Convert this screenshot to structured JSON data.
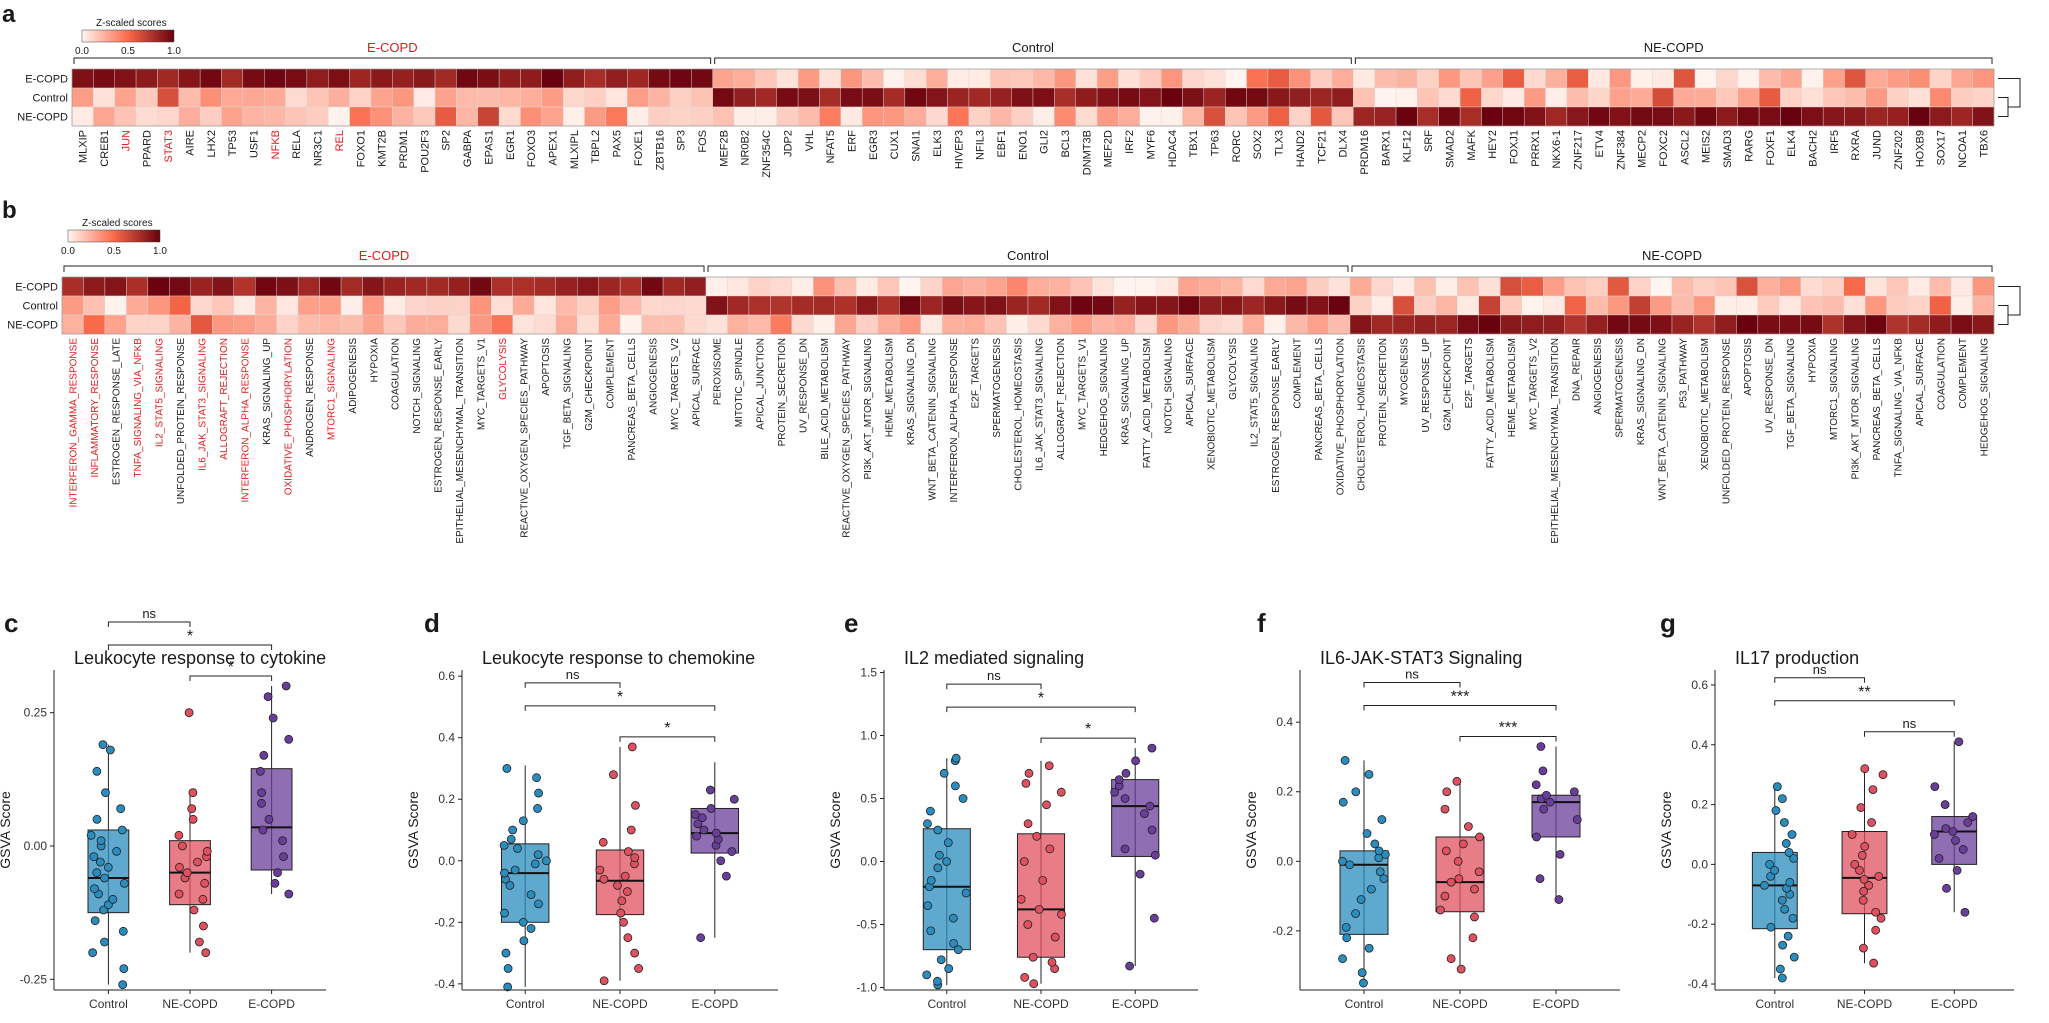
{
  "colors": {
    "low": "#fff5f0",
    "mid": "#fb6a4a",
    "high": "#67000d",
    "control": "#2b8cbe",
    "ne_copd": "#e0505f",
    "e_copd": "#6a3d9a",
    "label_highlight": "#e41a1c",
    "label_default": "#1a1a1a"
  },
  "panel_a": {
    "letter": "a",
    "legend_title": "Z-scaled scores",
    "legend_ticks": [
      "0.0",
      "0.5",
      "1.0"
    ],
    "group_labels": [
      "E-COPD",
      "Control",
      "NE-COPD"
    ],
    "row_labels": [
      "E-COPD",
      "Control",
      "NE-COPD"
    ],
    "columns": [
      "MLXIP",
      "CREB1",
      "JUN",
      "PPARD",
      "STAT3",
      "AIRE",
      "LHX2",
      "TP53",
      "USF1",
      "NFKB",
      "RELA",
      "NR3C1",
      "REL",
      "FOXO1",
      "KMT2B",
      "PRDM1",
      "POU2F3",
      "SP2",
      "GABPA",
      "EPAS1",
      "EGR1",
      "FOXO3",
      "APEX1",
      "MLXIPL",
      "TBPL2",
      "PAX5",
      "FOXE1",
      "ZBTB16",
      "SP3",
      "FOS",
      "MEF2B",
      "NR0B2",
      "ZNF354C",
      "JDP2",
      "VHL",
      "NFAT5",
      "ERF",
      "EGR3",
      "CUX1",
      "SNAI1",
      "ELK3",
      "HIVEP3",
      "NFIL3",
      "EBF1",
      "ENO1",
      "GLI2",
      "BCL3",
      "DNMT3B",
      "MEF2D",
      "IRF2",
      "MYF6",
      "HDAC4",
      "TBX1",
      "TP63",
      "RORC",
      "SOX2",
      "TLX3",
      "HAND2",
      "TCF21",
      "DLX4",
      "PRDM16",
      "BARX1",
      "KLF12",
      "SRF",
      "SMAD2",
      "MAFK",
      "HEY2",
      "FOXJ1",
      "PRRX1",
      "NKX6-1",
      "ZNF217",
      "ETV4",
      "ZNF384",
      "MECP2",
      "FOXC2",
      "ASCL2",
      "MEIS2",
      "SMAD3",
      "RARG",
      "FOXF1",
      "ELK4",
      "BACH2",
      "IRF5",
      "RXRA",
      "JUND",
      "ZNF202",
      "HOXB9",
      "SOX17",
      "NCOA1",
      "TBX6"
    ],
    "highlighted": [
      "JUN",
      "STAT3",
      "NFKB",
      "REL"
    ],
    "group_sizes": [
      30,
      30,
      30
    ]
  },
  "panel_b": {
    "letter": "b",
    "legend_title": "Z-scaled scores",
    "legend_ticks": [
      "0.0",
      "0.5",
      "1.0"
    ],
    "group_labels": [
      "E-COPD",
      "Control",
      "NE-COPD"
    ],
    "row_labels": [
      "E-COPD",
      "Control",
      "NE-COPD"
    ],
    "columns": [
      "INTERFERON_GAMMA_RESPONSE",
      "INFLAMMATORY_RESPONSE",
      "ESTROGEN_RESPONSE_LATE",
      "TNFA_SIGNALING_VIA_NFKB",
      "IL2_STAT5_SIGNALING",
      "UNFOLDED_PROTEIN_RESPONSE",
      "IL6_JAK_STAT3_SIGNALING",
      "ALLOGRAFT_REJECTION",
      "INTERFERON_ALPHA_RESPONSE",
      "KRAS_SIGNALING_UP",
      "OXIDATIVE_PHOSPHORYLATION",
      "ANDROGEN_RESPONSE",
      "MTORC1_SIGNALING",
      "ADIPOGENESIS",
      "HYPOXIA",
      "COAGULATION",
      "NOTCH_SIGNALING",
      "ESTROGEN_RESPONSE_EARLY",
      "EPITHELIAL_MESENCHYMAL_TRANSITION",
      "MYC_TARGETS_V1",
      "GLYCOLYSIS",
      "REACTIVE_OXYGEN_SPECIES_PATHWAY",
      "APOPTOSIS",
      "TGF_BETA_SIGNALING",
      "G2M_CHECKPOINT",
      "COMPLEMENT",
      "PANCREAS_BETA_CELLS",
      "ANGIOGENESIS",
      "MYC_TARGETS_V2",
      "APICAL_SURFACE",
      "PEROXISOME",
      "MITOTIC_SPINDLE",
      "APICAL_JUNCTION",
      "PROTEIN_SECRETION",
      "UV_RESPONSE_DN",
      "BILE_ACID_METABOLISM",
      "REACTIVE_OXYGEN_SPECIES_PATHWAY",
      "PI3K_AKT_MTOR_SIGNALING",
      "HEME_METABOLISM",
      "KRAS_SIGNALING_DN",
      "WNT_BETA_CATENIN_SIGNALING",
      "INTERFERON_ALPHA_RESPONSE",
      "E2F_TARGETS",
      "SPERMATOGENESIS",
      "CHOLESTEROL_HOMEOSTASIS",
      "IL6_JAK_STAT3_SIGNALING",
      "ALLOGRAFT_REJECTION",
      "MYC_TARGETS_V1",
      "HEDGEHOG_SIGNALING",
      "KRAS_SIGNALING_UP",
      "FATTY_ACID_METABOLISM",
      "NOTCH_SIGNALING",
      "APICAL_SURFACE",
      "XENOBIOTIC_METABOLISM",
      "GLYCOLYSIS",
      "IL2_STAT5_SIGNALING",
      "ESTROGEN_RESPONSE_EARLY",
      "COMPLEMENT",
      "PANCREAS_BETA_CELLS",
      "OXIDATIVE_PHOSPHORYLATION",
      "CHOLESTEROL_HOMEOSTASIS",
      "PROTEIN_SECRETION",
      "MYOGENESIS",
      "UV_RESPONSE_UP",
      "G2M_CHECKPOINT",
      "E2F_TARGETS",
      "FATTY_ACID_METABOLISM",
      "HEME_METABOLISM",
      "MYC_TARGETS_V2",
      "EPITHELIAL_MESENCHYMAL_TRANSITION",
      "DNA_REPAIR",
      "ANGIOGENESIS",
      "SPERMATOGENESIS",
      "KRAS_SIGNALING_DN",
      "WNT_BETA_CATENIN_SIGNALING",
      "P53_PATHWAY",
      "XENOBIOTIC_METABOLISM",
      "UNFOLDED_PROTEIN_RESPONSE",
      "APOPTOSIS",
      "UV_RESPONSE_DN",
      "TGF_BETA_SIGNALING",
      "HYPOXIA",
      "MTORC1_SIGNALING",
      "PI3K_AKT_MTOR_SIGNALING",
      "PANCREAS_BETA_CELLS",
      "TNFA_SIGNALING_VIA_NFKB",
      "APICAL_SURFACE",
      "COAGULATION",
      "COMPLEMENT",
      "HEDGEHOG_SIGNALING"
    ],
    "highlighted_indices": [
      0,
      1,
      3,
      4,
      6,
      7,
      8,
      10,
      12,
      20
    ],
    "group_sizes": [
      30,
      30,
      30
    ]
  },
  "boxplots": [
    {
      "letter": "c",
      "title": "Leukocyte response to cytokine",
      "ylabel": "GSVA Score",
      "categories": [
        "Control",
        "NE-COPD",
        "E-COPD"
      ],
      "yticks": [
        "-0.25",
        "0.00",
        "0.25"
      ],
      "chart_data": {
        "type": "box",
        "ylim": [
          -0.27,
          0.33
        ],
        "ytick_values": [
          -0.25,
          0.0,
          0.25
        ],
        "boxes": [
          {
            "q1": -0.125,
            "median": -0.06,
            "q3": 0.03,
            "min": -0.26,
            "max": 0.19
          },
          {
            "q1": -0.11,
            "median": -0.05,
            "q3": 0.01,
            "min": -0.2,
            "max": 0.1
          },
          {
            "q1": -0.045,
            "median": 0.035,
            "q3": 0.145,
            "min": -0.09,
            "max": 0.3
          }
        ],
        "points": [
          [
            -0.26,
            -0.23,
            -0.2,
            -0.18,
            -0.16,
            -0.14,
            -0.12,
            -0.11,
            -0.1,
            -0.09,
            -0.08,
            -0.07,
            -0.06,
            -0.05,
            -0.04,
            -0.03,
            -0.02,
            -0.01,
            0.0,
            0.01,
            0.02,
            0.03,
            0.05,
            0.07,
            0.1,
            0.14,
            0.18,
            0.19
          ],
          [
            -0.2,
            -0.18,
            -0.15,
            -0.12,
            -0.1,
            -0.09,
            -0.07,
            -0.06,
            -0.05,
            -0.04,
            -0.03,
            -0.02,
            -0.01,
            0.0,
            0.02,
            0.05,
            0.07,
            0.1,
            0.25
          ],
          [
            -0.09,
            -0.07,
            -0.05,
            -0.02,
            0.01,
            0.03,
            0.05,
            0.08,
            0.1,
            0.14,
            0.17,
            0.2,
            0.24,
            0.28,
            0.3
          ]
        ]
      },
      "annotations": [
        {
          "from": 1,
          "to": 2,
          "label": "*",
          "level": 0
        },
        {
          "from": 0,
          "to": 2,
          "label": "*",
          "level": 1
        },
        {
          "from": 0,
          "to": 1,
          "label": "ns",
          "level": 2
        }
      ]
    },
    {
      "letter": "d",
      "title": "Leukocyte response to chemokine",
      "ylabel": "GSVA Score",
      "categories": [
        "Control",
        "NE-COPD",
        "E-COPD"
      ],
      "yticks": [
        "-0.4",
        "-0.2",
        "0.0",
        "0.2",
        "0.4",
        "0.6"
      ],
      "chart_data": {
        "type": "box",
        "ylim": [
          -0.42,
          0.62
        ],
        "ytick_values": [
          -0.4,
          -0.2,
          0.0,
          0.2,
          0.4,
          0.6
        ],
        "boxes": [
          {
            "q1": -0.2,
            "median": -0.04,
            "q3": 0.055,
            "min": -0.41,
            "max": 0.31
          },
          {
            "q1": -0.175,
            "median": -0.065,
            "q3": 0.035,
            "min": -0.39,
            "max": 0.37
          },
          {
            "q1": 0.025,
            "median": 0.09,
            "q3": 0.17,
            "min": -0.25,
            "max": 0.32
          }
        ],
        "points": [
          [
            -0.41,
            -0.35,
            -0.3,
            -0.26,
            -0.22,
            -0.2,
            -0.17,
            -0.14,
            -0.11,
            -0.08,
            -0.06,
            -0.04,
            -0.03,
            -0.01,
            0.0,
            0.02,
            0.04,
            0.05,
            0.07,
            0.1,
            0.13,
            0.17,
            0.22,
            0.27,
            0.3
          ],
          [
            -0.39,
            -0.35,
            -0.3,
            -0.25,
            -0.2,
            -0.17,
            -0.13,
            -0.1,
            -0.08,
            -0.06,
            -0.05,
            -0.03,
            -0.01,
            0.01,
            0.03,
            0.06,
            0.1,
            0.18,
            0.28,
            0.37
          ],
          [
            -0.25,
            -0.05,
            0.0,
            0.03,
            0.05,
            0.07,
            0.08,
            0.09,
            0.1,
            0.12,
            0.14,
            0.15,
            0.17,
            0.2,
            0.23
          ]
        ]
      },
      "annotations": [
        {
          "from": 1,
          "to": 2,
          "label": "*",
          "level": 0
        },
        {
          "from": 0,
          "to": 2,
          "label": "*",
          "level": 1
        },
        {
          "from": 0,
          "to": 1,
          "label": "ns",
          "level": 2
        }
      ]
    },
    {
      "letter": "e",
      "title": "IL2 mediated signaling",
      "ylabel": "GSVA Score",
      "categories": [
        "Control",
        "NE-COPD",
        "E-COPD"
      ],
      "yticks": [
        "-1.0",
        "-0.5",
        "0.0",
        "0.5",
        "1.0",
        "1.5"
      ],
      "chart_data": {
        "type": "box",
        "ylim": [
          -1.02,
          1.52
        ],
        "ytick_values": [
          -1.0,
          -0.5,
          0.0,
          0.5,
          1.0,
          1.5
        ],
        "boxes": [
          {
            "q1": -0.7,
            "median": -0.2,
            "q3": 0.26,
            "min": -0.98,
            "max": 0.82
          },
          {
            "q1": -0.76,
            "median": -0.38,
            "q3": 0.22,
            "min": -0.97,
            "max": 0.8
          },
          {
            "q1": 0.04,
            "median": 0.44,
            "q3": 0.65,
            "min": -0.83,
            "max": 0.9
          }
        ],
        "points": [
          [
            -0.98,
            -0.95,
            -0.9,
            -0.85,
            -0.78,
            -0.7,
            -0.65,
            -0.55,
            -0.45,
            -0.35,
            -0.25,
            -0.2,
            -0.15,
            -0.05,
            0.0,
            0.05,
            0.15,
            0.25,
            0.3,
            0.4,
            0.5,
            0.6,
            0.7,
            0.8,
            0.82
          ],
          [
            -0.97,
            -0.92,
            -0.85,
            -0.8,
            -0.76,
            -0.6,
            -0.5,
            -0.42,
            -0.38,
            -0.3,
            -0.15,
            0.0,
            0.1,
            0.2,
            0.3,
            0.45,
            0.55,
            0.62,
            0.7,
            0.76
          ],
          [
            -0.83,
            -0.45,
            -0.1,
            0.05,
            0.1,
            0.25,
            0.38,
            0.44,
            0.5,
            0.55,
            0.6,
            0.65,
            0.7,
            0.8,
            0.9
          ]
        ]
      },
      "annotations": [
        {
          "from": 1,
          "to": 2,
          "label": "*",
          "level": 0
        },
        {
          "from": 0,
          "to": 2,
          "label": "*",
          "level": 1
        },
        {
          "from": 0,
          "to": 1,
          "label": "ns",
          "level": 2
        }
      ]
    },
    {
      "letter": "f",
      "title": "IL6-JAK-STAT3 Signaling",
      "ylabel": "GSVA Score",
      "categories": [
        "Control",
        "NE-COPD",
        "E-COPD"
      ],
      "yticks": [
        "-0.2",
        "0.0",
        "0.2",
        "0.4"
      ],
      "chart_data": {
        "type": "box",
        "ylim": [
          -0.37,
          0.55
        ],
        "ytick_values": [
          -0.2,
          0.0,
          0.2,
          0.4
        ],
        "boxes": [
          {
            "q1": -0.21,
            "median": -0.01,
            "q3": 0.03,
            "min": -0.35,
            "max": 0.29
          },
          {
            "q1": -0.145,
            "median": -0.06,
            "q3": 0.07,
            "min": -0.31,
            "max": 0.23
          },
          {
            "q1": 0.07,
            "median": 0.17,
            "q3": 0.19,
            "min": -0.11,
            "max": 0.33
          }
        ],
        "points": [
          [
            -0.35,
            -0.32,
            -0.28,
            -0.25,
            -0.22,
            -0.19,
            -0.15,
            -0.11,
            -0.08,
            -0.05,
            -0.03,
            -0.01,
            0.0,
            0.01,
            0.02,
            0.03,
            0.05,
            0.08,
            0.12,
            0.17,
            0.2,
            0.25,
            0.29
          ],
          [
            -0.31,
            -0.28,
            -0.22,
            -0.16,
            -0.14,
            -0.1,
            -0.08,
            -0.06,
            -0.05,
            -0.03,
            0.0,
            0.03,
            0.05,
            0.07,
            0.1,
            0.15,
            0.2,
            0.23
          ],
          [
            -0.11,
            -0.05,
            0.02,
            0.07,
            0.12,
            0.15,
            0.17,
            0.18,
            0.19,
            0.2,
            0.22,
            0.26,
            0.33
          ]
        ]
      },
      "annotations": [
        {
          "from": 1,
          "to": 2,
          "label": "***",
          "level": 0
        },
        {
          "from": 0,
          "to": 2,
          "label": "***",
          "level": 1
        },
        {
          "from": 0,
          "to": 1,
          "label": "ns",
          "level": 2
        }
      ]
    },
    {
      "letter": "g",
      "title": "IL17 production",
      "ylabel": "GSVA Score",
      "categories": [
        "Control",
        "NE-COPD",
        "E-COPD"
      ],
      "yticks": [
        "-0.4",
        "-0.2",
        "0.0",
        "0.2",
        "0.4",
        "0.6"
      ],
      "chart_data": {
        "type": "box",
        "ylim": [
          -0.42,
          0.65
        ],
        "ytick_values": [
          -0.4,
          -0.2,
          0.0,
          0.2,
          0.4,
          0.6
        ],
        "boxes": [
          {
            "q1": -0.215,
            "median": -0.07,
            "q3": 0.04,
            "min": -0.38,
            "max": 0.26
          },
          {
            "q1": -0.165,
            "median": -0.045,
            "q3": 0.11,
            "min": -0.33,
            "max": 0.32
          },
          {
            "q1": 0.0,
            "median": 0.11,
            "q3": 0.16,
            "min": -0.16,
            "max": 0.41
          }
        ],
        "points": [
          [
            -0.38,
            -0.35,
            -0.31,
            -0.27,
            -0.24,
            -0.21,
            -0.18,
            -0.15,
            -0.12,
            -0.1,
            -0.08,
            -0.07,
            -0.06,
            -0.04,
            -0.02,
            0.0,
            0.02,
            0.04,
            0.07,
            0.1,
            0.14,
            0.18,
            0.22,
            0.26
          ],
          [
            -0.33,
            -0.28,
            -0.22,
            -0.18,
            -0.16,
            -0.12,
            -0.09,
            -0.07,
            -0.05,
            -0.04,
            -0.02,
            0.0,
            0.03,
            0.06,
            0.1,
            0.14,
            0.19,
            0.25,
            0.3,
            0.32
          ],
          [
            -0.16,
            -0.08,
            -0.02,
            0.02,
            0.05,
            0.08,
            0.1,
            0.11,
            0.12,
            0.14,
            0.16,
            0.2,
            0.26,
            0.41
          ]
        ]
      },
      "annotations": [
        {
          "from": 1,
          "to": 2,
          "label": "ns",
          "level": 0
        },
        {
          "from": 0,
          "to": 2,
          "label": "**",
          "level": 1
        },
        {
          "from": 0,
          "to": 1,
          "label": "ns",
          "level": 2
        }
      ]
    }
  ]
}
